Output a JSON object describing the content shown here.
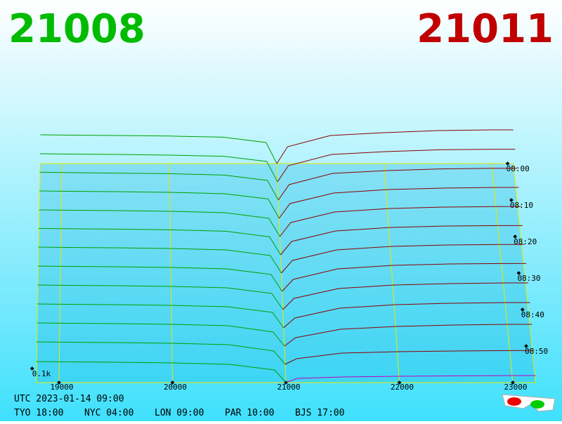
{
  "header": {
    "bid": "21008",
    "ask": "21011"
  },
  "chart_data": {
    "type": "depth3d",
    "xticks": [
      19000,
      20000,
      21000,
      22000,
      23000
    ],
    "xlim": [
      18800,
      23200
    ],
    "zticks": [
      {
        "value": 100,
        "label": "0.1k"
      }
    ],
    "time_ticks": [
      "08:00",
      "08:10",
      "08:20",
      "08:30",
      "08:40",
      "08:50"
    ],
    "rows": [
      "08:00",
      null,
      "08:10",
      null,
      "08:20",
      null,
      "08:30",
      null,
      "08:40",
      null,
      "08:50",
      null,
      null
    ],
    "bid_color": "#00a000",
    "ask_color": "#8b0000",
    "latest_ask_color": "#c000c0",
    "floor_color": "#e8e800",
    "bid_prices": [
      18800,
      19000,
      19500,
      20000,
      20500,
      20900,
      21000
    ],
    "ask_prices": [
      21000,
      21100,
      21500,
      22000,
      22500,
      23000,
      23200
    ],
    "bids": [
      [
        205,
        203,
        200,
        196,
        188,
        150,
        0
      ],
      [
        200,
        198,
        195,
        190,
        182,
        145,
        0
      ],
      [
        198,
        196,
        192,
        188,
        178,
        140,
        0
      ],
      [
        195,
        193,
        190,
        185,
        175,
        138,
        0
      ],
      [
        190,
        188,
        185,
        180,
        170,
        130,
        0
      ],
      [
        188,
        186,
        183,
        178,
        168,
        128,
        0
      ],
      [
        185,
        183,
        180,
        175,
        165,
        125,
        0
      ],
      [
        180,
        178,
        175,
        170,
        160,
        120,
        0
      ],
      [
        175,
        173,
        170,
        165,
        155,
        115,
        0
      ],
      [
        170,
        168,
        165,
        160,
        150,
        110,
        0
      ],
      [
        165,
        163,
        160,
        155,
        145,
        100,
        0
      ],
      [
        160,
        158,
        155,
        150,
        140,
        95,
        0
      ],
      [
        150,
        148,
        145,
        140,
        130,
        90,
        0
      ]
    ],
    "asks": [
      [
        0,
        120,
        200,
        220,
        235,
        240,
        240
      ],
      [
        0,
        115,
        195,
        215,
        228,
        232,
        232
      ],
      [
        0,
        110,
        190,
        210,
        222,
        226,
        226
      ],
      [
        0,
        105,
        180,
        205,
        215,
        220,
        220
      ],
      [
        0,
        100,
        175,
        200,
        210,
        214,
        214
      ],
      [
        0,
        95,
        170,
        195,
        205,
        208,
        208
      ],
      [
        0,
        90,
        165,
        190,
        200,
        204,
        204
      ],
      [
        0,
        85,
        160,
        185,
        195,
        198,
        198
      ],
      [
        0,
        80,
        150,
        175,
        185,
        190,
        190
      ],
      [
        0,
        70,
        140,
        165,
        175,
        180,
        180
      ],
      [
        0,
        60,
        120,
        140,
        150,
        155,
        155
      ],
      [
        0,
        40,
        80,
        90,
        95,
        98,
        98
      ],
      [
        0,
        30,
        40,
        45,
        48,
        50,
        50
      ]
    ]
  },
  "footer": {
    "utc": "UTC 2023-01-14 09:00",
    "cities": [
      "TYO 18:00",
      "NYC 04:00",
      "LON 09:00",
      "PAR 10:00",
      "BJS 17:00"
    ]
  }
}
